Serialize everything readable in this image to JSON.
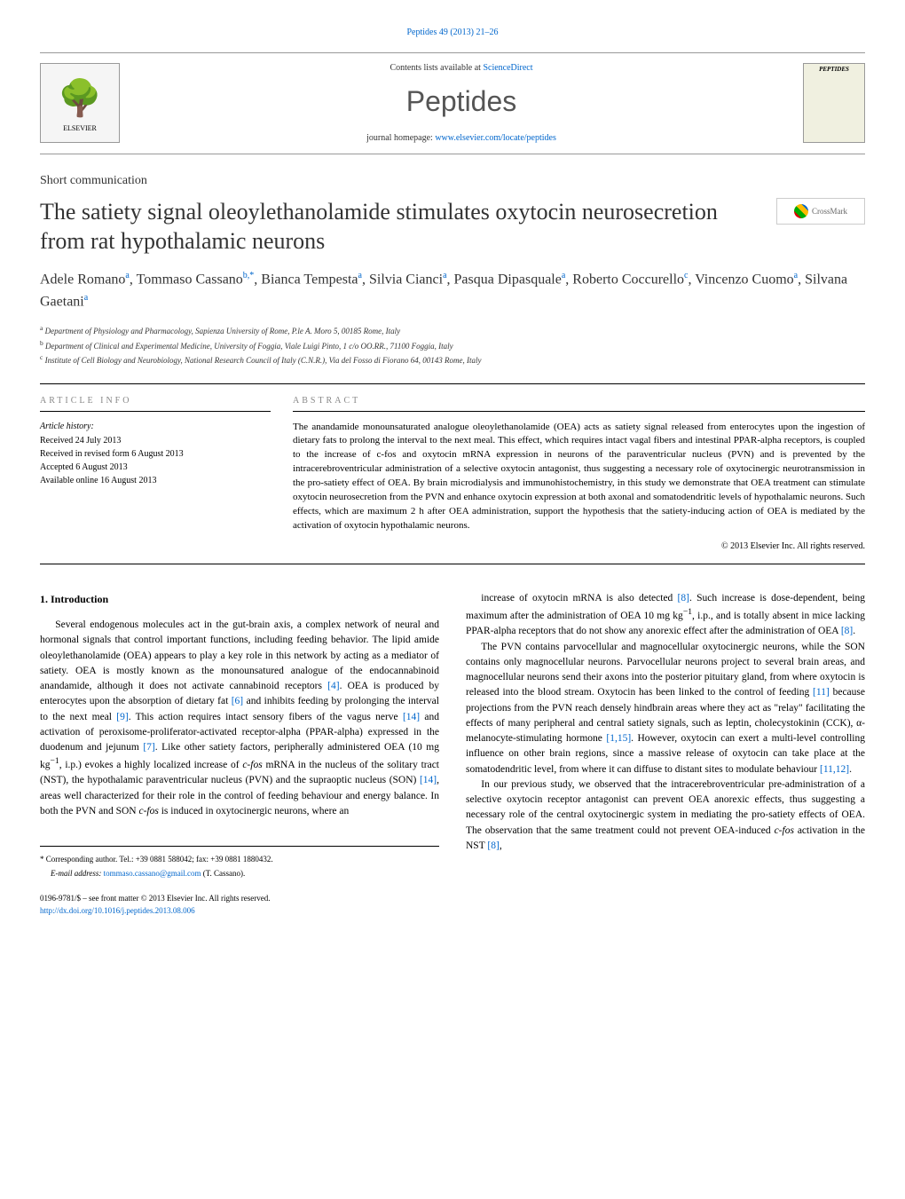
{
  "header_link": "Peptides 49 (2013) 21–26",
  "contents_text": "Contents lists available at ",
  "contents_link": "ScienceDirect",
  "journal_name": "Peptides",
  "homepage_text": "journal homepage: ",
  "homepage_link": "www.elsevier.com/locate/peptides",
  "elsevier_label": "ELSEVIER",
  "cover_title": "PEPTIDES",
  "article_type": "Short communication",
  "article_title": "The satiety signal oleoylethanolamide stimulates oxytocin neurosecretion from rat hypothalamic neurons",
  "crossmark_label": "CrossMark",
  "authors_html": "Adele Romano<sup>a</sup>, Tommaso Cassano<sup>b,*</sup>, Bianca Tempesta<sup>a</sup>, Silvia Cianci<sup>a</sup>, Pasqua Dipasquale<sup>a</sup>, Roberto Coccurello<sup>c</sup>, Vincenzo Cuomo<sup>a</sup>, Silvana Gaetani<sup>a</sup>",
  "affiliations": [
    {
      "sup": "a",
      "text": "Department of Physiology and Pharmacology, Sapienza University of Rome, P.le A. Moro 5, 00185 Rome, Italy"
    },
    {
      "sup": "b",
      "text": "Department of Clinical and Experimental Medicine, University of Foggia, Viale Luigi Pinto, 1 c/o OO.RR., 71100 Foggia, Italy"
    },
    {
      "sup": "c",
      "text": "Institute of Cell Biology and Neurobiology, National Research Council of Italy (C.N.R.), Via del Fosso di Fiorano 64, 00143 Rome, Italy"
    }
  ],
  "info_heading": "ARTICLE INFO",
  "history_label": "Article history:",
  "history": [
    "Received 24 July 2013",
    "Received in revised form 6 August 2013",
    "Accepted 6 August 2013",
    "Available online 16 August 2013"
  ],
  "abstract_heading": "ABSTRACT",
  "abstract_text": "The anandamide monounsaturated analogue oleoylethanolamide (OEA) acts as satiety signal released from enterocytes upon the ingestion of dietary fats to prolong the interval to the next meal. This effect, which requires intact vagal fibers and intestinal PPAR-alpha receptors, is coupled to the increase of c-fos and oxytocin mRNA expression in neurons of the paraventricular nucleus (PVN) and is prevented by the intracerebroventricular administration of a selective oxytocin antagonist, thus suggesting a necessary role of oxytocinergic neurotransmission in the pro-satiety effect of OEA. By brain microdialysis and immunohistochemistry, in this study we demonstrate that OEA treatment can stimulate oxytocin neurosecretion from the PVN and enhance oxytocin expression at both axonal and somatodendritic levels of hypothalamic neurons. Such effects, which are maximum 2 h after OEA administration, support the hypothesis that the satiety-inducing action of OEA is mediated by the activation of oxytocin hypothalamic neurons.",
  "copyright": "© 2013 Elsevier Inc. All rights reserved.",
  "intro_heading": "1. Introduction",
  "col1_p1": "Several endogenous molecules act in the gut-brain axis, a complex network of neural and hormonal signals that control important functions, including feeding behavior. The lipid amide oleoylethanolamide (OEA) appears to play a key role in this network by acting as a mediator of satiety. OEA is mostly known as the monounsatured analogue of the endocannabinoid anandamide, although it does not activate cannabinoid receptors <span class=\"ref-link\">[4]</span>. OEA is produced by enterocytes upon the absorption of dietary fat <span class=\"ref-link\">[6]</span> and inhibits feeding by prolonging the interval to the next meal <span class=\"ref-link\">[9]</span>. This action requires intact sensory fibers of the vagus nerve <span class=\"ref-link\">[14]</span> and activation of peroxisome-proliferator-activated receptor-alpha (PPAR-alpha) expressed in the duodenum and jejunum <span class=\"ref-link\">[7]</span>. Like other satiety factors, peripherally administered OEA (10 mg kg<sup>−1</sup>, i.p.) evokes a highly localized increase of <i>c-fos</i> mRNA in the nucleus of the solitary tract (NST), the hypothalamic paraventricular nucleus (PVN) and the supraoptic nucleus (SON) <span class=\"ref-link\">[14]</span>, areas well characterized for their role in the control of feeding behaviour and energy balance. In both the PVN and SON <i>c-fos</i> is induced in oxytocinergic neurons, where an",
  "col2_p1": "increase of oxytocin mRNA is also detected <span class=\"ref-link\">[8]</span>. Such increase is dose-dependent, being maximum after the administration of OEA 10 mg kg<sup>−1</sup>, i.p., and is totally absent in mice lacking PPAR-alpha receptors that do not show any anorexic effect after the administration of OEA <span class=\"ref-link\">[8]</span>.",
  "col2_p2": "The PVN contains parvocellular and magnocellular oxytocinergic neurons, while the SON contains only magnocellular neurons. Parvocellular neurons project to several brain areas, and magnocellular neurons send their axons into the posterior pituitary gland, from where oxytocin is released into the blood stream. Oxytocin has been linked to the control of feeding <span class=\"ref-link\">[11]</span> because projections from the PVN reach densely hindbrain areas where they act as \"relay\" facilitating the effects of many peripheral and central satiety signals, such as leptin, cholecystokinin (CCK), α-melanocyte-stimulating hormone <span class=\"ref-link\">[1,15]</span>. However, oxytocin can exert a multi-level controlling influence on other brain regions, since a massive release of oxytocin can take place at the somatodendritic level, from where it can diffuse to distant sites to modulate behaviour <span class=\"ref-link\">[11,12]</span>.",
  "col2_p3": "In our previous study, we observed that the intracerebroventricular pre-administration of a selective oxytocin receptor antagonist can prevent OEA anorexic effects, thus suggesting a necessary role of the central oxytocinergic system in mediating the pro-satiety effects of OEA. The observation that the same treatment could not prevent OEA-induced <i>c-fos</i> activation in the NST <span class=\"ref-link\">[8]</span>,",
  "corresponding_text": "* Corresponding author. Tel.: +39 0881 588042; fax: +39 0881 1880432.",
  "email_label": "E-mail address: ",
  "email_link": "tommaso.cassano@gmail.com",
  "email_suffix": " (T. Cassano).",
  "issn_text": "0196-9781/$ – see front matter © 2013 Elsevier Inc. All rights reserved.",
  "doi_link": "http://dx.doi.org/10.1016/j.peptides.2013.08.006"
}
